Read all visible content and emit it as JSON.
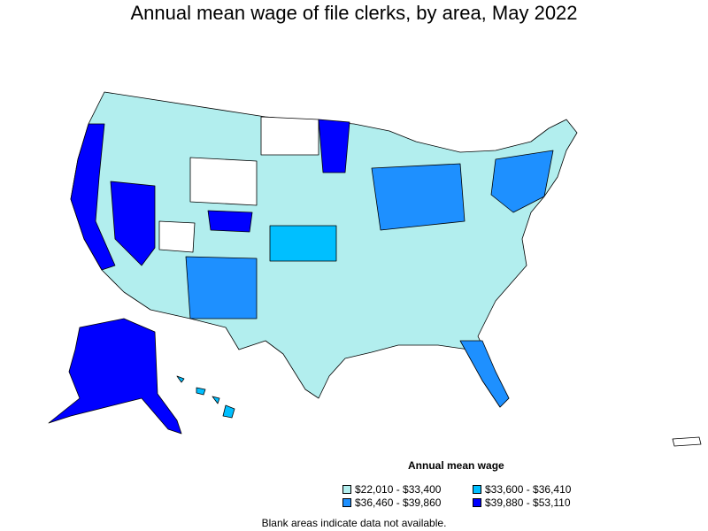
{
  "title": "Annual mean wage of file clerks, by area, May 2022",
  "legend": {
    "title": "Annual mean wage",
    "items": [
      {
        "label": "$22,010 - $33,400",
        "color": "#b2eeee"
      },
      {
        "label": "$33,600 - $36,410",
        "color": "#00bfff"
      },
      {
        "label": "$36,460 - $39,860",
        "color": "#1e90ff"
      },
      {
        "label": "$39,880 - $53,110",
        "color": "#0000ff"
      }
    ]
  },
  "note": "Blank areas indicate data not available."
}
